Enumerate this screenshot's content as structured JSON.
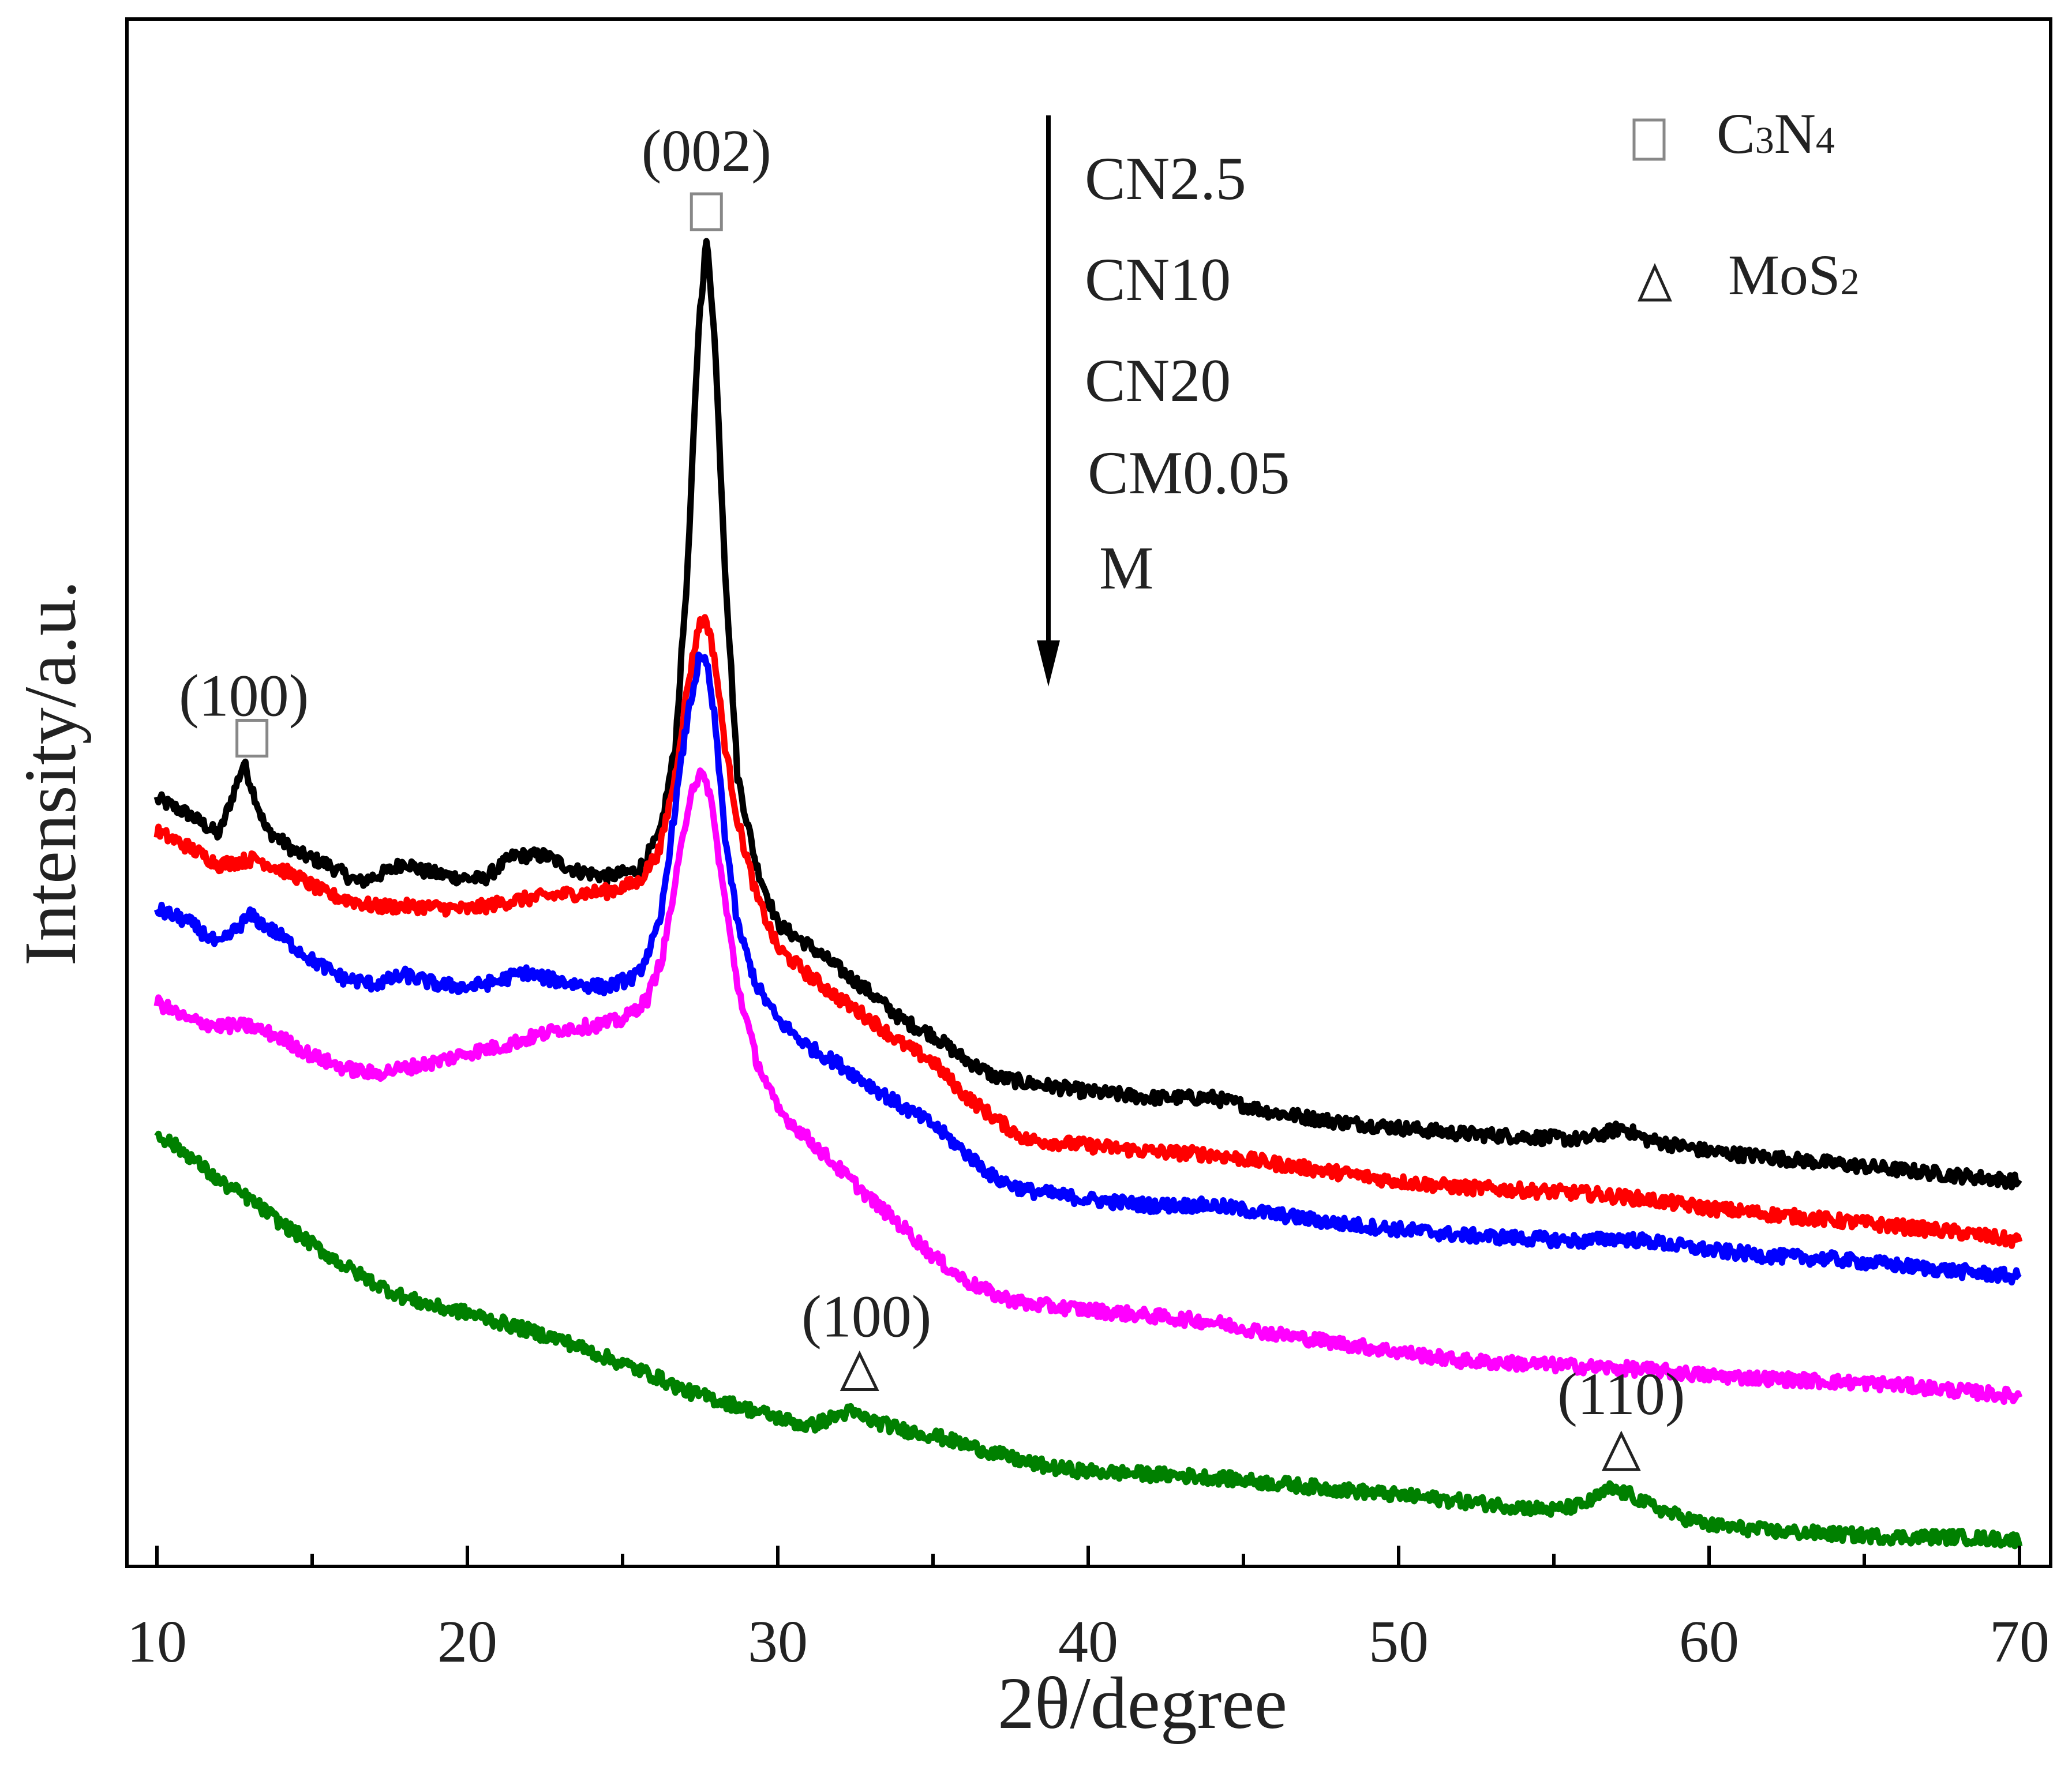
{
  "chart_data": {
    "type": "line",
    "title": "",
    "xlabel": "2θ/degree",
    "ylabel": "Intensity/a.u.",
    "xlim": [
      9,
      71
    ],
    "ylim": [
      0,
      100
    ],
    "x_ticks": [
      10,
      20,
      30,
      40,
      50,
      60,
      70
    ],
    "x_tick_labels": [
      "10",
      "20",
      "30",
      "40",
      "50",
      "60",
      "70"
    ],
    "y_ticks_shown": false,
    "grid": false,
    "series": [
      {
        "name": "CN2.5",
        "color": "#000000",
        "points": [
          [
            10,
            50.4
          ],
          [
            11,
            49.4
          ],
          [
            12,
            48.0
          ],
          [
            12.8,
            52.8
          ],
          [
            13.5,
            48.4
          ],
          [
            14.5,
            46.8
          ],
          [
            15.5,
            46.0
          ],
          [
            16.5,
            44.8
          ],
          [
            17.5,
            45.6
          ],
          [
            18,
            46.2
          ],
          [
            18.5,
            45.6
          ],
          [
            19.5,
            45.2
          ],
          [
            20.5,
            45.0
          ],
          [
            21.5,
            46.6
          ],
          [
            22.5,
            46.6
          ],
          [
            23.5,
            45.6
          ],
          [
            24.5,
            45.2
          ],
          [
            25.5,
            45.6
          ],
          [
            26.2,
            48.0
          ],
          [
            26.7,
            54.0
          ],
          [
            27.1,
            66.0
          ],
          [
            27.45,
            82.0
          ],
          [
            27.7,
            87.8
          ],
          [
            27.95,
            82.0
          ],
          [
            28.3,
            66.0
          ],
          [
            28.7,
            52.0
          ],
          [
            29.3,
            46.0
          ],
          [
            30,
            42.0
          ],
          [
            31,
            40.6
          ],
          [
            32,
            39.0
          ],
          [
            33,
            37.4
          ],
          [
            34,
            35.6
          ],
          [
            35,
            34.6
          ],
          [
            36,
            33.0
          ],
          [
            37,
            31.8
          ],
          [
            38,
            31.4
          ],
          [
            40,
            30.8
          ],
          [
            42,
            30.4
          ],
          [
            44,
            30.4
          ],
          [
            46,
            29.4
          ],
          [
            48,
            28.8
          ],
          [
            50,
            28.4
          ],
          [
            52,
            28.0
          ],
          [
            54,
            27.8
          ],
          [
            56,
            27.6
          ],
          [
            57.2,
            28.4
          ],
          [
            58,
            27.6
          ],
          [
            60,
            26.8
          ],
          [
            62,
            26.4
          ],
          [
            64,
            26.0
          ],
          [
            66,
            25.6
          ],
          [
            68,
            25.2
          ],
          [
            70,
            24.8
          ]
        ]
      },
      {
        "name": "CN10",
        "color": "#ff0000",
        "points": [
          [
            10,
            48.2
          ],
          [
            11,
            47.2
          ],
          [
            12,
            46.0
          ],
          [
            13.2,
            46.4
          ],
          [
            14.5,
            45.2
          ],
          [
            15.5,
            44.0
          ],
          [
            17,
            43.2
          ],
          [
            18.5,
            43.2
          ],
          [
            20,
            43.0
          ],
          [
            21.5,
            43.6
          ],
          [
            23,
            44.0
          ],
          [
            24.5,
            44.2
          ],
          [
            25.5,
            44.8
          ],
          [
            26.2,
            47.0
          ],
          [
            26.7,
            52.0
          ],
          [
            27.1,
            58.0
          ],
          [
            27.45,
            62.0
          ],
          [
            27.7,
            62.4
          ],
          [
            27.95,
            60.0
          ],
          [
            28.3,
            54.0
          ],
          [
            28.7,
            49.0
          ],
          [
            29.3,
            44.0
          ],
          [
            30,
            40.4
          ],
          [
            31,
            38.6
          ],
          [
            32,
            37.0
          ],
          [
            33,
            35.6
          ],
          [
            34,
            34.0
          ],
          [
            35,
            32.8
          ],
          [
            36,
            30.6
          ],
          [
            37,
            29.0
          ],
          [
            38,
            27.6
          ],
          [
            40,
            27.2
          ],
          [
            42,
            26.8
          ],
          [
            44,
            26.6
          ],
          [
            46,
            26.0
          ],
          [
            48,
            25.4
          ],
          [
            50,
            24.8
          ],
          [
            52,
            24.4
          ],
          [
            54,
            24.2
          ],
          [
            56,
            24.0
          ],
          [
            58,
            23.6
          ],
          [
            60,
            23.0
          ],
          [
            62,
            22.6
          ],
          [
            64,
            22.2
          ],
          [
            66,
            21.8
          ],
          [
            68,
            21.4
          ],
          [
            70,
            20.8
          ]
        ]
      },
      {
        "name": "CN20",
        "color": "#0000ff",
        "points": [
          [
            10,
            43.0
          ],
          [
            11,
            42.2
          ],
          [
            12,
            40.6
          ],
          [
            13,
            42.6
          ],
          [
            14,
            41.2
          ],
          [
            15,
            39.6
          ],
          [
            16,
            38.4
          ],
          [
            17,
            38.0
          ],
          [
            18,
            38.6
          ],
          [
            19,
            38.0
          ],
          [
            20,
            37.8
          ],
          [
            21,
            38.2
          ],
          [
            21.8,
            38.8
          ],
          [
            22.5,
            38.4
          ],
          [
            23.5,
            38.0
          ],
          [
            24.5,
            37.8
          ],
          [
            25.5,
            38.6
          ],
          [
            26.2,
            42.0
          ],
          [
            26.7,
            50.0
          ],
          [
            27.1,
            56.0
          ],
          [
            27.45,
            59.6
          ],
          [
            27.7,
            59.6
          ],
          [
            27.95,
            56.0
          ],
          [
            28.3,
            48.0
          ],
          [
            28.7,
            42.0
          ],
          [
            29.3,
            38.0
          ],
          [
            30,
            35.6
          ],
          [
            31,
            33.8
          ],
          [
            32,
            32.6
          ],
          [
            33,
            31.2
          ],
          [
            34,
            29.8
          ],
          [
            35,
            28.6
          ],
          [
            36,
            26.8
          ],
          [
            37,
            25.0
          ],
          [
            38,
            24.2
          ],
          [
            40,
            23.6
          ],
          [
            42,
            23.2
          ],
          [
            44,
            23.2
          ],
          [
            46,
            22.6
          ],
          [
            48,
            22.0
          ],
          [
            50,
            21.6
          ],
          [
            52,
            21.2
          ],
          [
            54,
            21.0
          ],
          [
            56,
            20.8
          ],
          [
            57,
            21.0
          ],
          [
            58,
            20.8
          ],
          [
            60,
            20.2
          ],
          [
            62,
            19.8
          ],
          [
            64,
            19.6
          ],
          [
            66,
            19.2
          ],
          [
            68,
            18.8
          ],
          [
            70,
            18.4
          ]
        ]
      },
      {
        "name": "CM0.05",
        "color": "#ff00ff",
        "points": [
          [
            10,
            36.8
          ],
          [
            11,
            35.6
          ],
          [
            12,
            35.2
          ],
          [
            13,
            35.2
          ],
          [
            14,
            34.4
          ],
          [
            15,
            33.2
          ],
          [
            16,
            32.4
          ],
          [
            17,
            32.0
          ],
          [
            18,
            32.4
          ],
          [
            19,
            32.8
          ],
          [
            20,
            33.4
          ],
          [
            21,
            33.8
          ],
          [
            22,
            34.4
          ],
          [
            23,
            35.0
          ],
          [
            24,
            35.2
          ],
          [
            25,
            35.6
          ],
          [
            25.8,
            37.0
          ],
          [
            26.3,
            40.0
          ],
          [
            26.8,
            46.0
          ],
          [
            27.2,
            51.0
          ],
          [
            27.5,
            52.0
          ],
          [
            27.8,
            51.0
          ],
          [
            28.2,
            45.0
          ],
          [
            28.7,
            38.0
          ],
          [
            29.3,
            33.0
          ],
          [
            30,
            29.6
          ],
          [
            31,
            27.6
          ],
          [
            32,
            25.6
          ],
          [
            33,
            23.6
          ],
          [
            34,
            21.8
          ],
          [
            35,
            19.8
          ],
          [
            36,
            18.2
          ],
          [
            37,
            17.2
          ],
          [
            38,
            16.6
          ],
          [
            40,
            16.2
          ],
          [
            42,
            15.8
          ],
          [
            44,
            15.4
          ],
          [
            46,
            14.6
          ],
          [
            48,
            14.0
          ],
          [
            50,
            13.4
          ],
          [
            52,
            12.8
          ],
          [
            54,
            12.6
          ],
          [
            56,
            12.4
          ],
          [
            58,
            12.2
          ],
          [
            60,
            11.8
          ],
          [
            62,
            11.6
          ],
          [
            64,
            11.4
          ],
          [
            66,
            11.2
          ],
          [
            68,
            10.8
          ],
          [
            70,
            10.4
          ]
        ]
      },
      {
        "name": "M",
        "color": "#008000",
        "points": [
          [
            10,
            28.0
          ],
          [
            11,
            26.6
          ],
          [
            12,
            24.8
          ],
          [
            12.5,
            24.2
          ],
          [
            13,
            23.6
          ],
          [
            14,
            22.0
          ],
          [
            15,
            20.6
          ],
          [
            16,
            19.2
          ],
          [
            17,
            18.0
          ],
          [
            18,
            17.0
          ],
          [
            19,
            16.4
          ],
          [
            20,
            16.0
          ],
          [
            21,
            15.4
          ],
          [
            22,
            14.8
          ],
          [
            23,
            14.2
          ],
          [
            24,
            13.4
          ],
          [
            25,
            12.6
          ],
          [
            26,
            11.8
          ],
          [
            27,
            10.8
          ],
          [
            28,
            10.2
          ],
          [
            29,
            9.6
          ],
          [
            30,
            9.0
          ],
          [
            31,
            8.4
          ],
          [
            32.3,
            9.4
          ],
          [
            33,
            8.8
          ],
          [
            34,
            8.2
          ],
          [
            35,
            7.8
          ],
          [
            36,
            7.2
          ],
          [
            37,
            6.6
          ],
          [
            38,
            6.0
          ],
          [
            39,
            5.6
          ],
          [
            40,
            5.4
          ],
          [
            42,
            5.2
          ],
          [
            44,
            5.0
          ],
          [
            46,
            4.6
          ],
          [
            48,
            4.2
          ],
          [
            50,
            3.8
          ],
          [
            52,
            3.4
          ],
          [
            54,
            3.0
          ],
          [
            55,
            2.8
          ],
          [
            56,
            3.2
          ],
          [
            56.8,
            4.2
          ],
          [
            57.5,
            3.8
          ],
          [
            58,
            3.2
          ],
          [
            59,
            2.4
          ],
          [
            60,
            1.8
          ],
          [
            62,
            1.4
          ],
          [
            64,
            1.2
          ],
          [
            66,
            1.0
          ],
          [
            68,
            1.0
          ],
          [
            70,
            0.8
          ]
        ]
      }
    ],
    "legend": {
      "placement": "top-center",
      "direction_note": "arrow pointing down from CN2.5 to M",
      "entries": [
        "CN2.5",
        "CN10",
        "CN20",
        "CM0.05",
        "M"
      ]
    },
    "phase_legend": {
      "placement": "top-right",
      "entries": [
        {
          "symbol": "square",
          "label_main": "C",
          "sub1": "3",
          "label_mid": "N",
          "sub2": "4"
        },
        {
          "symbol": "triangle",
          "label_main": "MoS",
          "sub1": "2"
        }
      ]
    },
    "annotations": [
      {
        "text": "(002)",
        "symbol": "square",
        "x": 27.7,
        "series": "CN2.5"
      },
      {
        "text": "(100)",
        "symbol": "square",
        "x": 12.8,
        "series": "CN2.5"
      },
      {
        "text": "(100)",
        "symbol": "triangle",
        "x": 32.3,
        "series": "M"
      },
      {
        "text": "(110)",
        "symbol": "triangle",
        "x": 56.8,
        "series": "M"
      }
    ]
  }
}
